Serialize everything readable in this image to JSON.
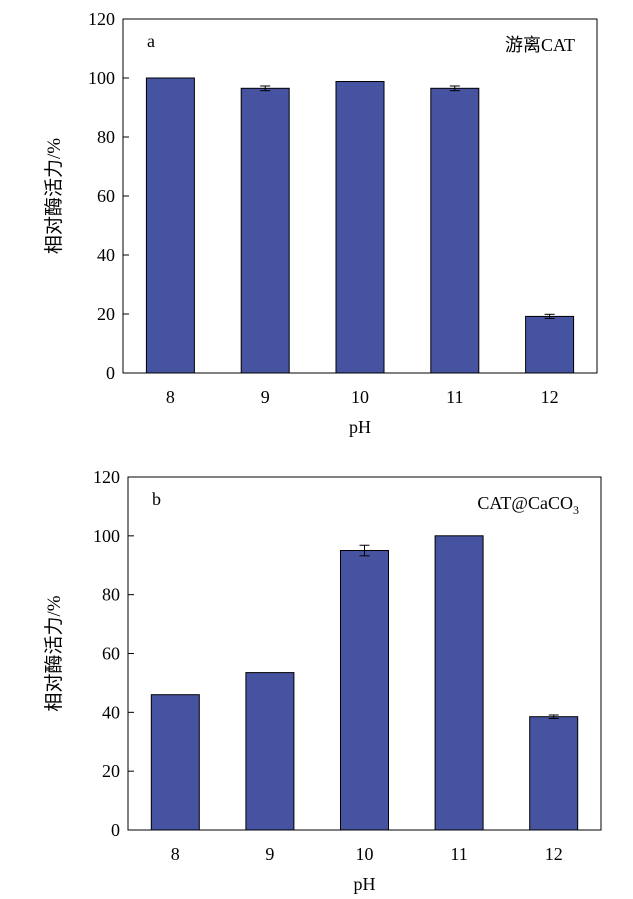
{
  "colors": {
    "bar_fill": "#4653A0",
    "bar_stroke": "#000000",
    "axis": "#000000"
  },
  "chart_data": [
    {
      "type": "bar",
      "panel_label": "a",
      "title": "游离CAT",
      "title_sub": "",
      "xlabel": "pH",
      "ylabel": "相对酶活力/%",
      "categories": [
        "8",
        "9",
        "10",
        "11",
        "12"
      ],
      "values": [
        100,
        96.5,
        98.8,
        96.5,
        19.2
      ],
      "errors": [
        0,
        0.8,
        0,
        0.8,
        0.7
      ],
      "ylim": [
        0,
        120
      ],
      "yticks": [
        "0",
        "20",
        "40",
        "60",
        "80",
        "100",
        "120"
      ],
      "grid": false
    },
    {
      "type": "bar",
      "panel_label": "b",
      "title": "CAT@CaCO",
      "title_sub": "3",
      "xlabel": "pH",
      "ylabel": "相对酶活力/%",
      "categories": [
        "8",
        "9",
        "10",
        "11",
        "12"
      ],
      "values": [
        46,
        53.5,
        95,
        100,
        38.5
      ],
      "errors": [
        0,
        0,
        1.8,
        0,
        0.6
      ],
      "ylim": [
        0,
        120
      ],
      "yticks": [
        "0",
        "20",
        "40",
        "60",
        "80",
        "100",
        "120"
      ],
      "grid": false
    }
  ]
}
